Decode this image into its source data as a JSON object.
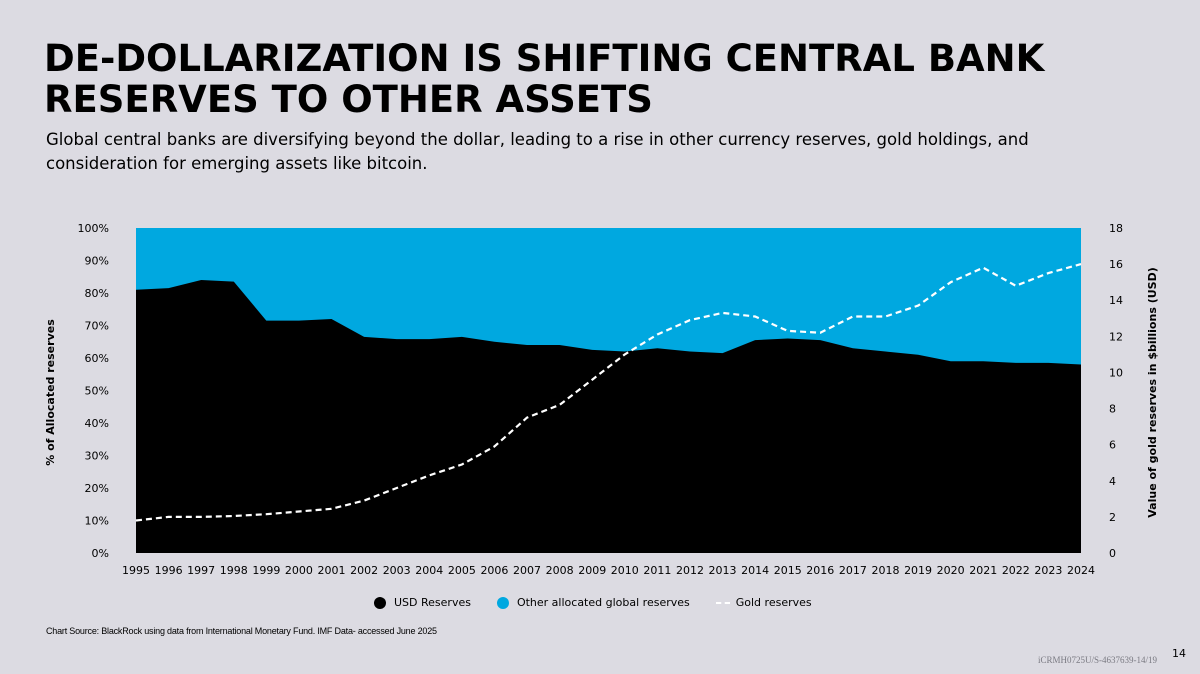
{
  "title": "DE-DOLLARIZATION IS SHIFTING CENTRAL BANK RESERVES TO OTHER ASSETS",
  "subtitle": "Global central banks are diversifying beyond the dollar, leading to a rise in other currency reserves, gold holdings, and consideration for emerging assets like bitcoin.",
  "source": "Chart Source:  BlackRock using data from International Monetary Fund. IMF Data- accessed June 2025",
  "code": "iCRMH0725U/S-4637639-14/19",
  "page_number": "14",
  "colors": {
    "usd": "#000000",
    "other": "#00a8e0",
    "gold": "#ffffff",
    "background": "#dcdbe2"
  },
  "chart_data": {
    "type": "area",
    "x": [
      "1995",
      "1996",
      "1997",
      "1998",
      "1999",
      "2000",
      "2001",
      "2002",
      "2003",
      "2004",
      "2005",
      "2006",
      "2007",
      "2008",
      "2009",
      "2010",
      "2011",
      "2012",
      "2013",
      "2014",
      "2015",
      "2016",
      "2017",
      "2018",
      "2019",
      "2020",
      "2021",
      "2022",
      "2023",
      "2024"
    ],
    "series": [
      {
        "name": "USD Reserves",
        "axis": "left",
        "style": "area",
        "values": [
          81,
          81.5,
          84,
          83.5,
          71.5,
          71.5,
          72,
          66.5,
          65.8,
          65.8,
          66.5,
          65,
          64,
          64,
          62.5,
          62,
          63,
          62,
          61.5,
          65.5,
          66,
          65.5,
          63,
          62,
          61,
          59,
          59,
          58.5,
          58.5,
          58
        ]
      },
      {
        "name": "Other allocated global reserves",
        "axis": "left",
        "style": "area-fill-remainder",
        "values": [
          19,
          18.5,
          16,
          16.5,
          28.5,
          28.5,
          28,
          33.5,
          34.2,
          34.2,
          33.5,
          35,
          36,
          36,
          37.5,
          38,
          37,
          38,
          38.5,
          34.5,
          34,
          34.5,
          37,
          38,
          39,
          41,
          41,
          41.5,
          41.5,
          42
        ]
      },
      {
        "name": "Gold reserves",
        "axis": "right",
        "style": "dashed-line",
        "values": [
          1.8,
          2.0,
          2.0,
          2.05,
          2.15,
          2.3,
          2.45,
          2.9,
          3.6,
          4.3,
          4.9,
          5.9,
          7.5,
          8.2,
          9.6,
          11.0,
          12.1,
          12.9,
          13.3,
          13.1,
          12.3,
          12.2,
          13.1,
          13.1,
          13.7,
          15.0,
          15.8,
          14.8,
          15.5,
          16.0
        ]
      }
    ],
    "ylabel": "% of Allocated reserves",
    "y2label": "Value of gold reserves in $billions (USD)",
    "ylim": [
      0,
      100
    ],
    "y2lim": [
      0,
      18
    ],
    "yticks": [
      "0%",
      "10%",
      "20%",
      "30%",
      "40%",
      "50%",
      "60%",
      "70%",
      "80%",
      "90%",
      "100%"
    ],
    "y2ticks": [
      "0",
      "2",
      "4",
      "6",
      "8",
      "10",
      "12",
      "14",
      "16",
      "18"
    ],
    "legend": [
      {
        "label": "USD Reserves",
        "swatch": "dot",
        "color": "#000000"
      },
      {
        "label": "Other allocated global reserves",
        "swatch": "dot",
        "color": "#00a8e0"
      },
      {
        "label": "Gold reserves",
        "swatch": "dashed-line",
        "color": "#ffffff"
      }
    ],
    "legend_position": "bottom-center",
    "grid": false
  }
}
